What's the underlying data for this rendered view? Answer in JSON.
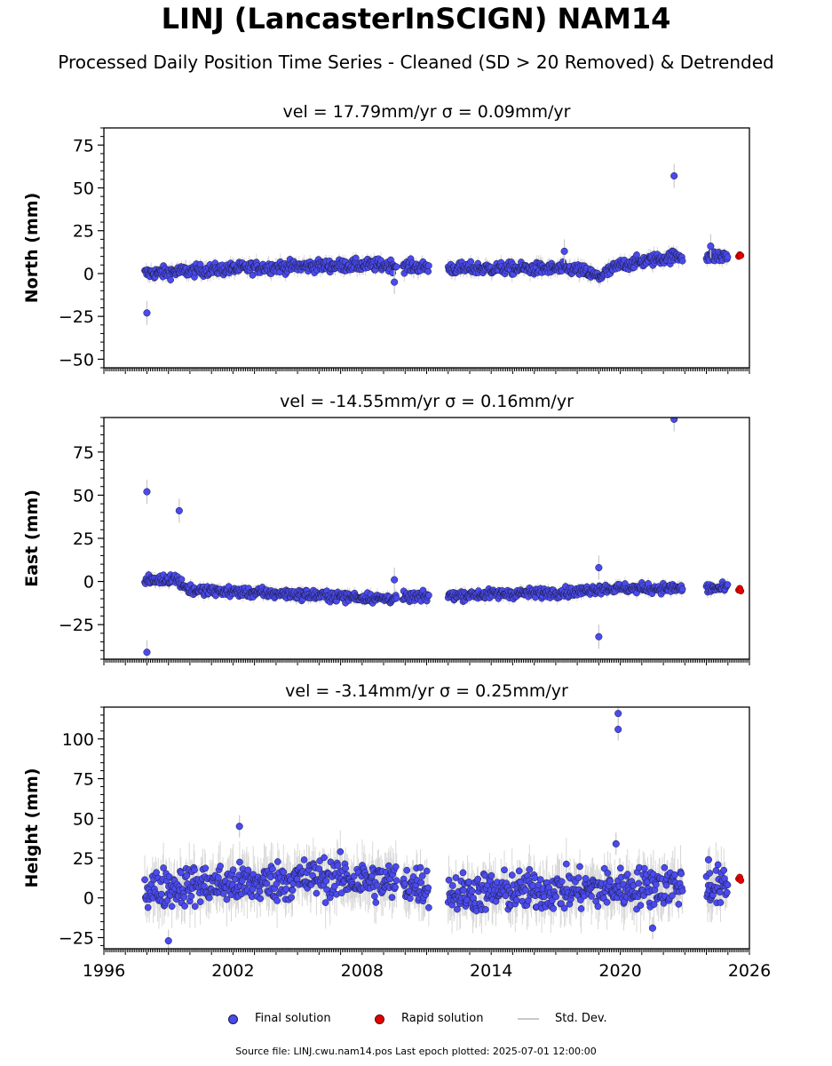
{
  "title": "LINJ (LancasterInSCIGN) NAM14",
  "subtitle": "Processed Daily Position Time Series - Cleaned (SD > 20 Removed) & Detrended",
  "legend": {
    "final": "Final solution",
    "rapid": "Rapid solution",
    "stddev": "Std. Dev."
  },
  "footer": "Source file: LINJ.cwu.nam14.pos  Last epoch plotted: 2025-07-01 12:00:00",
  "colors": {
    "final": "#4a4aee",
    "rapid": "#e00000",
    "stddev": "#c8c8c8",
    "edge": "#1a1a3a"
  },
  "chart_data": [
    {
      "type": "scatter",
      "title_prefix": "vel = 17.79mm/yr",
      "title_sigma": "σ = 0.09mm/yr",
      "ylabel": "North (mm)",
      "xlim": [
        1996,
        2026
      ],
      "ylim": [
        -55,
        85
      ],
      "yticks": [
        -50,
        -25,
        0,
        25,
        50,
        75
      ],
      "grid": false,
      "trend_anchors": [
        [
          1997.9,
          0
        ],
        [
          2000,
          1.5
        ],
        [
          2003,
          3.5
        ],
        [
          2006,
          4.5
        ],
        [
          2009,
          5
        ],
        [
          2012,
          3
        ],
        [
          2015,
          3
        ],
        [
          2018,
          2.5
        ],
        [
          2019,
          -2
        ],
        [
          2020,
          5
        ],
        [
          2022.5,
          10
        ],
        [
          2025,
          10
        ]
      ],
      "scatter_amp": 2.5,
      "segments": [
        [
          1997.9,
          2009.6
        ],
        [
          2009.9,
          2011.1
        ],
        [
          2012.0,
          2022.9
        ],
        [
          2024.0,
          2025.0
        ]
      ],
      "outliers": [
        {
          "x": 1998.0,
          "y": -23
        },
        {
          "x": 2022.5,
          "y": 57
        },
        {
          "x": 2009.5,
          "y": -5
        },
        {
          "x": 2017.4,
          "y": 13
        },
        {
          "x": 2024.2,
          "y": 16
        }
      ],
      "rapid": [
        {
          "x": 2025.5,
          "y": 10
        },
        {
          "x": 2025.55,
          "y": 11
        },
        {
          "x": 2025.6,
          "y": 10.5
        }
      ]
    },
    {
      "type": "scatter",
      "title_prefix": "vel = -14.55mm/yr",
      "title_sigma": "σ = 0.16mm/yr",
      "ylabel": "East (mm)",
      "xlim": [
        1996,
        2026
      ],
      "ylim": [
        -45,
        95
      ],
      "yticks": [
        -25,
        0,
        25,
        50,
        75
      ],
      "grid": false,
      "trend_anchors": [
        [
          1997.9,
          0
        ],
        [
          1999.3,
          2
        ],
        [
          2000,
          -5
        ],
        [
          2003,
          -6.5
        ],
        [
          2006,
          -8
        ],
        [
          2009,
          -10
        ],
        [
          2012,
          -8
        ],
        [
          2015,
          -7
        ],
        [
          2018,
          -6
        ],
        [
          2019,
          -4
        ],
        [
          2022.5,
          -4
        ],
        [
          2025,
          -4
        ]
      ],
      "scatter_amp": 2.0,
      "segments": [
        [
          1997.9,
          2009.6
        ],
        [
          2009.9,
          2011.1
        ],
        [
          2012.0,
          2022.9
        ],
        [
          2024.0,
          2025.0
        ]
      ],
      "outliers": [
        {
          "x": 1998.0,
          "y": 52
        },
        {
          "x": 1999.5,
          "y": 41
        },
        {
          "x": 1998.0,
          "y": -41
        },
        {
          "x": 2019.0,
          "y": -32
        },
        {
          "x": 2022.5,
          "y": 94
        },
        {
          "x": 2009.5,
          "y": 1
        },
        {
          "x": 2019.0,
          "y": 8
        }
      ],
      "rapid": [
        {
          "x": 2025.5,
          "y": -5
        },
        {
          "x": 2025.55,
          "y": -4
        },
        {
          "x": 2025.6,
          "y": -5.5
        }
      ]
    },
    {
      "type": "scatter",
      "title_prefix": "vel = -3.14mm/yr",
      "title_sigma": "σ = 0.25mm/yr",
      "ylabel": "Height (mm)",
      "xlim": [
        1996,
        2026
      ],
      "ylim": [
        -32,
        120
      ],
      "yticks": [
        -25,
        0,
        25,
        50,
        75,
        100
      ],
      "xticks": [
        1996,
        2002,
        2008,
        2014,
        2020,
        2026
      ],
      "grid": false,
      "trend_anchors": [
        [
          1997.9,
          5
        ],
        [
          2000,
          8
        ],
        [
          2003,
          9
        ],
        [
          2006,
          13
        ],
        [
          2009,
          10
        ],
        [
          2011,
          8
        ],
        [
          2012,
          3
        ],
        [
          2015,
          4
        ],
        [
          2018,
          5
        ],
        [
          2020,
          6
        ],
        [
          2022.5,
          8
        ],
        [
          2024,
          8
        ],
        [
          2025,
          6
        ]
      ],
      "scatter_amp": 9.0,
      "segments": [
        [
          1997.9,
          2009.6
        ],
        [
          2009.9,
          2011.1
        ],
        [
          2012.0,
          2022.9
        ],
        [
          2024.0,
          2025.0
        ]
      ],
      "outliers": [
        {
          "x": 2019.9,
          "y": 116
        },
        {
          "x": 2019.9,
          "y": 106
        },
        {
          "x": 1999.0,
          "y": -27
        },
        {
          "x": 2002.3,
          "y": 45
        },
        {
          "x": 2021.5,
          "y": -19
        },
        {
          "x": 2019.8,
          "y": 34
        },
        {
          "x": 2024.1,
          "y": 24
        }
      ],
      "rapid": [
        {
          "x": 2025.5,
          "y": 12
        },
        {
          "x": 2025.55,
          "y": 13
        },
        {
          "x": 2025.6,
          "y": 11
        }
      ]
    }
  ]
}
